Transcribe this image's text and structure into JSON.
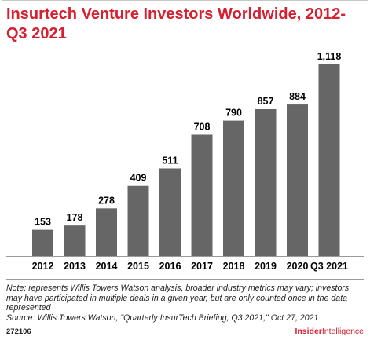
{
  "title": "Insurtech Venture Investors Worldwide, 2012-Q3 2021",
  "chart_data": {
    "type": "bar",
    "title": "Insurtech Venture Investors Worldwide, 2012-Q3 2021",
    "categories": [
      "2012",
      "2013",
      "2014",
      "2015",
      "2016",
      "2017",
      "2018",
      "2019",
      "2020",
      "Q3 2021"
    ],
    "values": [
      153,
      178,
      278,
      409,
      511,
      708,
      790,
      857,
      884,
      1118
    ],
    "value_labels": [
      "153",
      "178",
      "278",
      "409",
      "511",
      "708",
      "790",
      "857",
      "884",
      "1,118"
    ],
    "xlabel": "",
    "ylabel": "",
    "ylim": [
      0,
      1200
    ],
    "grid": false,
    "legend": "none",
    "bar_color": "#666666"
  },
  "notes": {
    "note": "Note: represents Willis Towers Watson analysis, broader industry metrics may vary; investors may have participated in multiple deals in a given year, but are only counted once in the data represented",
    "source": "Source: Willis Towers Watson, \"Quarterly InsurTech Briefing, Q3 2021,\" Oct 27, 2021"
  },
  "footer": {
    "chart_id": "272106",
    "brand_prefix": "Insider",
    "brand_suffix": "Intelligence",
    "brand_color": "#d6202f"
  }
}
